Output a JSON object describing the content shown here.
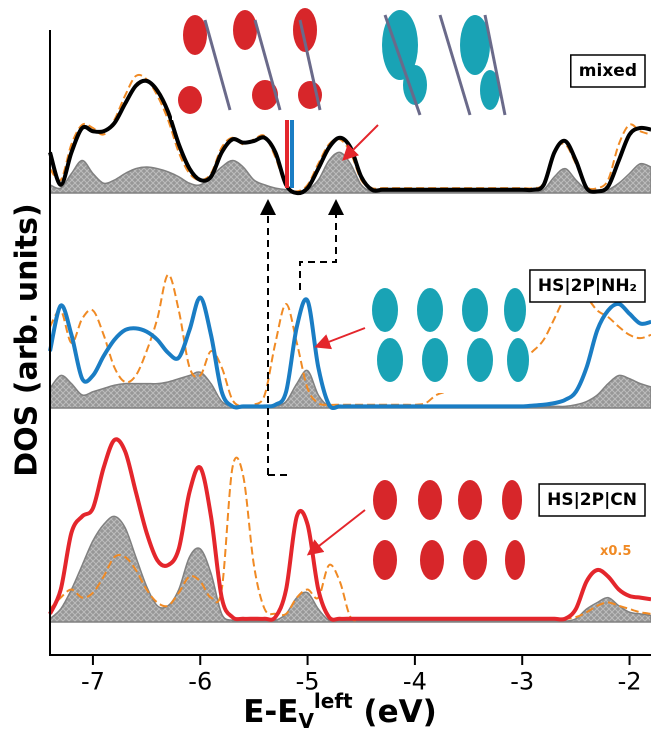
{
  "chart_data": {
    "type": "line",
    "xlabel_parts": [
      "E-E",
      "V",
      "left",
      " (eV)"
    ],
    "ylabel": "DOS (arb. units)",
    "xlim": [
      -7.4,
      -1.8
    ],
    "xticks": [
      -7,
      -6,
      -5,
      -4,
      -3,
      -2
    ],
    "x": [
      -7.4,
      -7.3,
      -7.2,
      -7.1,
      -7.0,
      -6.9,
      -6.8,
      -6.7,
      -6.6,
      -6.5,
      -6.4,
      -6.3,
      -6.2,
      -6.1,
      -6.0,
      -5.9,
      -5.8,
      -5.7,
      -5.6,
      -5.5,
      -5.4,
      -5.3,
      -5.2,
      -5.1,
      -5.0,
      -4.9,
      -4.8,
      -4.7,
      -4.6,
      -4.5,
      -4.4,
      -4.3,
      -4.2,
      -4.1,
      -4.0,
      -3.9,
      -3.8,
      -3.7,
      -3.6,
      -3.5,
      -3.4,
      -3.3,
      -3.2,
      -3.1,
      -3.0,
      -2.9,
      -2.8,
      -2.7,
      -2.6,
      -2.5,
      -2.4,
      -2.3,
      -2.2,
      -2.1,
      -2.0,
      -1.9,
      -1.8
    ],
    "panels": [
      {
        "label": "mixed",
        "ylim": [
          0,
          12
        ],
        "series": [
          {
            "style": "area",
            "color": "#808080",
            "values": [
              0.5,
              0.3,
              1.2,
              2.0,
              1.2,
              0.6,
              0.8,
              1.2,
              1.5,
              1.6,
              1.5,
              1.3,
              1.0,
              0.6,
              0.5,
              1.0,
              1.6,
              2.0,
              1.6,
              0.8,
              0.5,
              0.3,
              0.2,
              0.1,
              0.2,
              0.8,
              2.0,
              2.5,
              1.8,
              0.5,
              0.1,
              0.05,
              0.05,
              0.05,
              0.05,
              0.05,
              0.05,
              0.05,
              0.05,
              0.05,
              0.05,
              0.05,
              0.05,
              0.05,
              0.05,
              0.05,
              0.2,
              1.0,
              1.5,
              0.8,
              0.2,
              0.1,
              0.2,
              0.6,
              1.2,
              1.8,
              1.6
            ]
          },
          {
            "style": "dashed",
            "color": "#f08a24",
            "values": [
              1.5,
              0.8,
              3.0,
              4.2,
              4.0,
              3.6,
              4.5,
              6.0,
              7.2,
              7.0,
              6.0,
              4.5,
              2.5,
              1.2,
              0.8,
              1.2,
              2.8,
              3.4,
              3.0,
              3.3,
              3.5,
              2.2,
              0.4,
              0.1,
              0.5,
              1.8,
              3.0,
              3.3,
              2.5,
              0.8,
              0.3,
              0.3,
              0.3,
              0.3,
              0.3,
              0.3,
              0.3,
              0.3,
              0.3,
              0.3,
              0.3,
              0.3,
              0.3,
              0.3,
              0.3,
              0.3,
              0.6,
              2.6,
              3.0,
              1.8,
              0.4,
              0.3,
              0.8,
              3.0,
              4.2,
              3.8,
              3.6
            ]
          },
          {
            "style": "solid",
            "color": "#000000",
            "values": [
              2.5,
              0.5,
              2.5,
              4.0,
              3.8,
              3.8,
              4.3,
              5.5,
              6.6,
              6.9,
              6.3,
              5.0,
              3.0,
              1.5,
              0.8,
              1.0,
              2.5,
              3.3,
              3.1,
              3.2,
              3.4,
              2.5,
              0.5,
              0.0,
              0.3,
              1.5,
              2.8,
              3.4,
              2.8,
              1.0,
              0.2,
              0.2,
              0.2,
              0.2,
              0.2,
              0.2,
              0.2,
              0.2,
              0.2,
              0.2,
              0.2,
              0.2,
              0.2,
              0.2,
              0.2,
              0.2,
              0.5,
              2.5,
              3.2,
              2.0,
              0.3,
              0.1,
              0.4,
              2.0,
              3.6,
              4.0,
              3.9
            ]
          }
        ]
      },
      {
        "label": "HS|2P|NH₂",
        "ylim": [
          0,
          12
        ],
        "series": [
          {
            "style": "area",
            "color": "#808080",
            "values": [
              1.2,
              2.0,
              1.5,
              0.8,
              1.0,
              1.2,
              1.4,
              1.5,
              1.5,
              1.5,
              1.5,
              1.6,
              1.8,
              2.0,
              2.2,
              1.5,
              0.4,
              0.1,
              0.05,
              0.05,
              0.05,
              0.1,
              0.4,
              1.5,
              2.3,
              0.8,
              0.1,
              0.05,
              0.05,
              0.05,
              0.05,
              0.05,
              0.05,
              0.05,
              0.05,
              0.05,
              0.05,
              0.05,
              0.05,
              0.05,
              0.05,
              0.05,
              0.05,
              0.05,
              0.05,
              0.05,
              0.05,
              0.1,
              0.1,
              0.2,
              0.4,
              0.8,
              1.5,
              2.0,
              1.8,
              1.5,
              1.3
            ]
          },
          {
            "style": "dashed",
            "color": "#f08a24",
            "values": [
              5.0,
              6.0,
              4.0,
              5.5,
              6.0,
              4.5,
              2.5,
              1.6,
              2.0,
              3.5,
              5.5,
              8.2,
              6.0,
              2.5,
              2.0,
              3.5,
              2.5,
              0.5,
              0.1,
              0.2,
              0.8,
              4.0,
              6.4,
              4.0,
              1.2,
              0.3,
              0.2,
              0.2,
              0.2,
              0.2,
              0.2,
              0.2,
              0.2,
              0.2,
              0.2,
              0.3,
              0.8,
              1.0,
              1.0,
              1.0,
              1.2,
              1.5,
              2.0,
              2.5,
              3.0,
              3.5,
              4.2,
              5.5,
              6.8,
              7.2,
              6.8,
              6.0,
              5.6,
              5.0,
              4.5,
              4.3,
              4.5
            ]
          },
          {
            "style": "solid",
            "color": "#1a7dc4",
            "values": [
              3.5,
              6.3,
              4.5,
              1.8,
              2.0,
              3.2,
              4.2,
              4.8,
              4.9,
              4.7,
              4.2,
              3.4,
              3.1,
              4.8,
              6.8,
              4.5,
              1.0,
              0.1,
              0.1,
              0.1,
              0.1,
              0.2,
              1.0,
              5.0,
              6.6,
              2.5,
              0.2,
              0.1,
              0.1,
              0.1,
              0.1,
              0.1,
              0.1,
              0.1,
              0.1,
              0.1,
              0.1,
              0.1,
              0.1,
              0.1,
              0.1,
              0.1,
              0.1,
              0.1,
              0.1,
              0.15,
              0.2,
              0.3,
              0.5,
              1.0,
              2.5,
              4.8,
              6.0,
              6.4,
              5.8,
              5.2,
              5.3
            ]
          }
        ]
      },
      {
        "label": "HS|2P|CN",
        "note": "x0.5",
        "ylim": [
          0,
          12
        ],
        "series": [
          {
            "style": "area",
            "color": "#808080",
            "values": [
              0.2,
              0.8,
              2.0,
              3.5,
              5.0,
              6.0,
              6.5,
              5.8,
              4.0,
              2.2,
              1.0,
              1.0,
              2.0,
              4.0,
              4.5,
              3.0,
              0.5,
              0.1,
              0.05,
              0.05,
              0.05,
              0.1,
              0.5,
              1.5,
              1.8,
              0.8,
              0.1,
              0.05,
              0.05,
              0.05,
              0.05,
              0.05,
              0.05,
              0.05,
              0.05,
              0.05,
              0.05,
              0.05,
              0.05,
              0.05,
              0.05,
              0.05,
              0.05,
              0.05,
              0.05,
              0.05,
              0.05,
              0.05,
              0.05,
              0.2,
              0.8,
              1.2,
              1.5,
              1.0,
              0.6,
              0.5,
              0.4
            ]
          },
          {
            "style": "dashed",
            "color": "#f08a24",
            "values": [
              0.8,
              1.5,
              2.0,
              1.5,
              1.8,
              2.8,
              4.0,
              4.0,
              3.2,
              2.0,
              1.2,
              1.0,
              1.8,
              2.8,
              2.5,
              1.5,
              2.0,
              9.5,
              9.0,
              3.5,
              0.8,
              0.5,
              0.5,
              1.5,
              2.0,
              1.5,
              3.5,
              2.5,
              0.3,
              0.2,
              0.2,
              0.2,
              0.2,
              0.2,
              0.2,
              0.2,
              0.2,
              0.2,
              0.2,
              0.2,
              0.2,
              0.2,
              0.2,
              0.2,
              0.2,
              0.2,
              0.2,
              0.2,
              0.2,
              0.3,
              0.6,
              1.0,
              1.2,
              1.0,
              0.8,
              0.6,
              0.5
            ]
          },
          {
            "style": "solid",
            "color": "#e4262c",
            "values": [
              0.5,
              2.0,
              5.5,
              6.5,
              7.0,
              9.5,
              11.2,
              10.5,
              8.0,
              5.5,
              3.8,
              3.5,
              4.5,
              8.0,
              9.5,
              6.5,
              1.5,
              0.3,
              0.2,
              0.2,
              0.2,
              0.3,
              2.0,
              6.5,
              6.0,
              2.0,
              0.3,
              0.2,
              0.2,
              0.2,
              0.2,
              0.2,
              0.2,
              0.2,
              0.2,
              0.2,
              0.2,
              0.2,
              0.2,
              0.2,
              0.2,
              0.2,
              0.2,
              0.2,
              0.2,
              0.2,
              0.2,
              0.2,
              0.2,
              0.8,
              2.5,
              3.2,
              2.8,
              2.0,
              1.6,
              1.5,
              1.4
            ]
          }
        ]
      }
    ]
  }
}
